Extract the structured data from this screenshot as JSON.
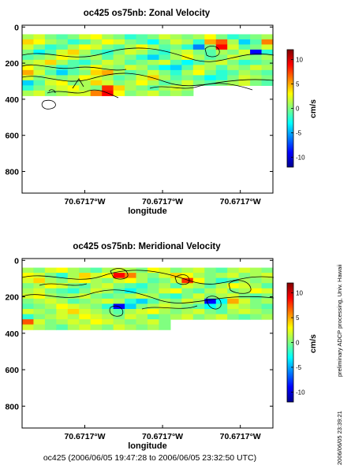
{
  "chart_data": [
    {
      "type": "heatmap",
      "title": "oc425 os75nb: Zonal Velocity",
      "xlabel": "longitude",
      "x_tick_labels": [
        "70.6717°W",
        "70.6717°W",
        "70.6717°W"
      ],
      "ylim": [
        920,
        -10
      ],
      "y_ticks": [
        0,
        200,
        400,
        600,
        800
      ],
      "y_tick_labels": [
        "0",
        "200",
        "400",
        "600",
        "800"
      ],
      "colorbar": {
        "label": "cm/s",
        "range": [
          -12,
          12
        ],
        "ticks": [
          10,
          5,
          0,
          -5,
          -10
        ],
        "tick_labels": [
          "10",
          "5",
          "0",
          "-5",
          "-10"
        ]
      },
      "data_depth_range": [
        40,
        380
      ],
      "values": [
        [
          1,
          2,
          0,
          -1,
          0,
          2,
          3,
          1,
          0,
          -2,
          -1,
          0,
          2,
          1,
          0,
          1,
          3,
          0,
          -2,
          -1,
          0,
          1
        ],
        [
          4,
          3,
          1,
          0,
          -2,
          -1,
          1,
          3,
          2,
          0,
          -1,
          -3,
          0,
          2,
          1,
          -2,
          5,
          7,
          1,
          -4,
          -1,
          6
        ],
        [
          2,
          0,
          -2,
          -1,
          1,
          3,
          2,
          0,
          -1,
          1,
          3,
          1,
          -1,
          0,
          -2,
          -6,
          0,
          9,
          2,
          -1,
          0,
          2
        ],
        [
          0,
          -3,
          -1,
          2,
          4,
          1,
          -1,
          -2,
          0,
          2,
          1,
          -1,
          -2,
          1,
          2,
          0,
          -1,
          1,
          0,
          2,
          -9,
          -2
        ],
        [
          -1,
          0,
          1,
          3,
          2,
          0,
          1,
          -1,
          1,
          0,
          -2,
          -4,
          -1,
          1,
          3,
          1,
          -1,
          0,
          2,
          1,
          0,
          1
        ],
        [
          1,
          2,
          4,
          1,
          -1,
          -2,
          0,
          2,
          1,
          -1,
          0,
          1,
          2,
          -1,
          -3,
          -1,
          1,
          2,
          0,
          -2,
          -1,
          0
        ],
        [
          3,
          1,
          0,
          -2,
          -1,
          1,
          3,
          1,
          0,
          2,
          1,
          -1,
          -3,
          -4,
          -1,
          2,
          1,
          -1,
          1,
          0,
          2,
          1
        ],
        [
          5,
          2,
          -1,
          -4,
          -1,
          0,
          4,
          5,
          1,
          -1,
          0,
          2,
          0,
          -2,
          1,
          3,
          0,
          -2,
          -1,
          1,
          0,
          -1
        ],
        [
          2,
          0,
          1,
          0,
          1,
          3,
          2,
          1,
          -1,
          0,
          2,
          4,
          1,
          -1,
          0,
          -1,
          -3,
          -2,
          0,
          2,
          1,
          0
        ],
        [
          -4,
          -1,
          2,
          3,
          0,
          1,
          4,
          2,
          0,
          1,
          3,
          1,
          -1,
          0,
          2,
          0,
          -1,
          0,
          1,
          2,
          0,
          -1
        ],
        [
          -2,
          0,
          1,
          2,
          3,
          1,
          0,
          8,
          4,
          1,
          0,
          -1,
          1,
          2,
          1,
          0,
          0,
          0,
          0,
          0,
          0,
          0
        ],
        [
          1,
          2,
          0,
          1,
          2,
          2,
          6,
          9,
          3,
          0,
          1,
          2,
          0,
          1,
          0,
          0,
          0,
          0,
          0,
          0,
          0,
          0
        ]
      ]
    },
    {
      "type": "heatmap",
      "title": "oc425 os75nb: Meridional Velocity",
      "xlabel": "longitude",
      "x_tick_labels": [
        "70.6717°W",
        "70.6717°W",
        "70.6717°W"
      ],
      "ylim": [
        920,
        -10
      ],
      "y_ticks": [
        0,
        200,
        400,
        600,
        800
      ],
      "y_tick_labels": [
        "0",
        "200",
        "400",
        "600",
        "800"
      ],
      "colorbar": {
        "label": "cm/s",
        "range": [
          -12,
          12
        ],
        "ticks": [
          10,
          5,
          0,
          -5,
          -10
        ],
        "tick_labels": [
          "10",
          "5",
          "0",
          "-5",
          "-10"
        ]
      },
      "data_depth_range": [
        40,
        380
      ],
      "values": [
        [
          1,
          0,
          2,
          3,
          1,
          0,
          -1,
          1,
          2,
          1,
          0,
          3,
          2,
          0,
          1,
          2,
          0,
          -1,
          1,
          2,
          1,
          0
        ],
        [
          3,
          2,
          0,
          -2,
          1,
          4,
          2,
          3,
          9,
          6,
          1,
          0,
          2,
          4,
          3,
          1,
          0,
          1,
          2,
          0,
          1,
          2
        ],
        [
          2,
          4,
          1,
          0,
          2,
          3,
          1,
          0,
          2,
          3,
          1,
          -1,
          0,
          2,
          8,
          3,
          0,
          -2,
          -1,
          1,
          0,
          1
        ],
        [
          0,
          1,
          3,
          2,
          0,
          -1,
          1,
          2,
          0,
          -1,
          -2,
          0,
          1,
          -1,
          2,
          1,
          -1,
          1,
          3,
          2,
          1,
          -1
        ],
        [
          1,
          2,
          0,
          -1,
          -2,
          0,
          2,
          1,
          -1,
          -3,
          -1,
          0,
          2,
          3,
          0,
          -1,
          1,
          2,
          0,
          1,
          3,
          2
        ],
        [
          2,
          3,
          1,
          0,
          1,
          2,
          0,
          -1,
          0,
          1,
          2,
          1,
          -1,
          -2,
          0,
          2,
          0,
          1,
          2,
          0,
          -1,
          0
        ],
        [
          0,
          1,
          2,
          1,
          -1,
          0,
          1,
          2,
          1,
          -2,
          -4,
          -1,
          1,
          0,
          2,
          1,
          -9,
          -3,
          5,
          2,
          0,
          1
        ],
        [
          -1,
          0,
          1,
          3,
          2,
          1,
          0,
          -2,
          -9,
          -4,
          0,
          1,
          2,
          1,
          0,
          -1,
          -3,
          -1,
          2,
          1,
          0,
          -1
        ],
        [
          2,
          1,
          0,
          2,
          4,
          2,
          1,
          0,
          -1,
          1,
          2,
          3,
          1,
          0,
          1,
          2,
          0,
          -1,
          1,
          2,
          1,
          0
        ],
        [
          -2,
          0,
          1,
          2,
          1,
          3,
          2,
          1,
          0,
          2,
          1,
          -1,
          0,
          1,
          2,
          0,
          1,
          2,
          0,
          -1,
          0,
          1
        ],
        [
          7,
          2,
          0,
          1,
          2,
          1,
          3,
          2,
          1,
          0,
          1,
          2,
          0,
          0,
          0,
          0,
          0,
          0,
          0,
          0,
          0,
          0
        ],
        [
          2,
          1,
          0,
          -1,
          1,
          2,
          1,
          0,
          2,
          1,
          0,
          1,
          0,
          0,
          0,
          0,
          0,
          0,
          0,
          0,
          0,
          0
        ]
      ]
    }
  ],
  "footer": "oc425 (2006/06/05 19:47:28 to 2006/06/05 23:32:50 UTC)",
  "side_text": "preliminary ADCP processing,   Univ. Hawaii",
  "side_stamp": "2006/06/05 23:39:21"
}
